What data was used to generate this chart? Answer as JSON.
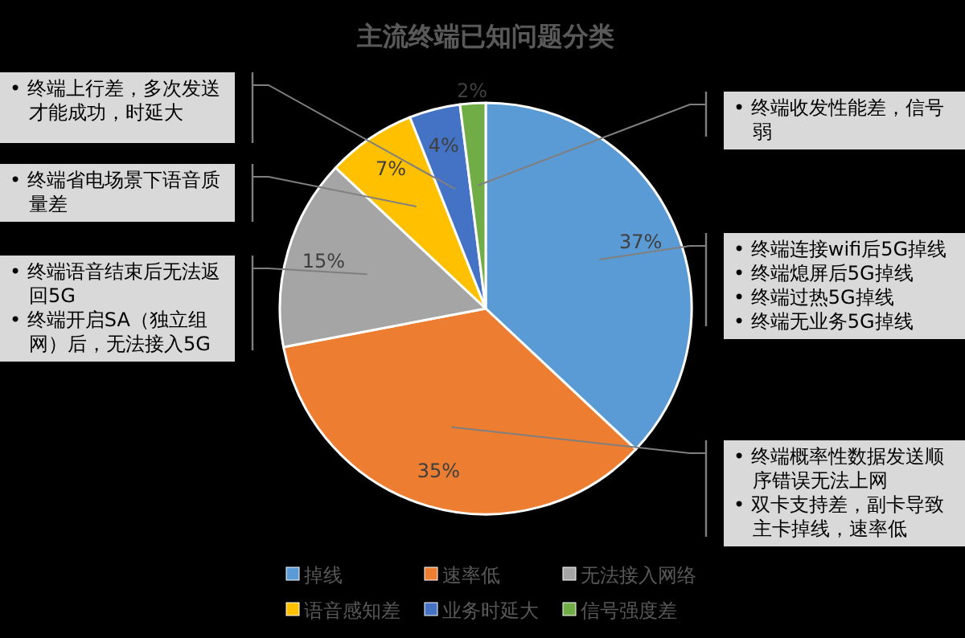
{
  "chart_data": {
    "type": "pie",
    "title": "主流终端已知问题分类",
    "categories": [
      "掉线",
      "速率低",
      "无法接入网络",
      "语音感知差",
      "业务时延大",
      "信号强度差"
    ],
    "values": [
      37,
      35,
      15,
      7,
      4,
      2
    ],
    "colors": [
      "#5b9bd5",
      "#ed7d31",
      "#a5a5a5",
      "#ffc000",
      "#4472c4",
      "#70ad47"
    ],
    "value_labels": [
      "37%",
      "35%",
      "15%",
      "7%",
      "4%",
      "2%"
    ],
    "legend": "bottom",
    "annotations": [
      "• 终端上行差，多次发送才能成功，时延大",
      "• 终端省电场景下语音质量差",
      "• 终端语音结束后无法返回5G",
      "• 终端开启SA（独立组网）后，无法接入5G",
      "• 终端收发性能差，信号弱",
      "• 终端连接wifi后5G掉线",
      "• 终端熄屏后5G掉线",
      "• 终端过热5G掉线",
      "• 终端无业务5G掉线",
      "• 终端概率性数据发送顺序错误无法上网",
      "• 双卡支持差，副卡导致主卡掉线，速率低"
    ]
  }
}
